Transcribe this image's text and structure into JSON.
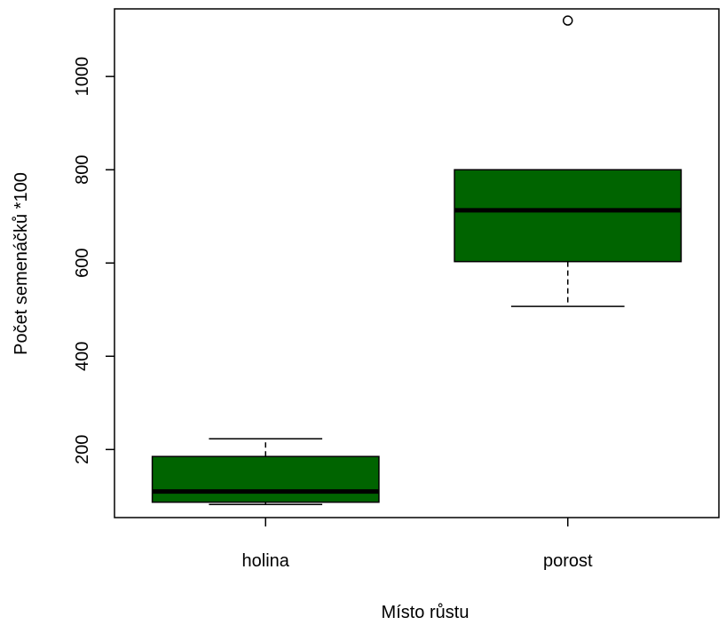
{
  "chart_data": {
    "type": "boxplot",
    "xlabel": "Místo růstu",
    "ylabel": "Počet semenáčků *100",
    "yticks": [
      200,
      400,
      600,
      800,
      1000
    ],
    "ylim": [
      54,
      1145
    ],
    "categories": [
      "holina",
      "porost"
    ],
    "box_color": "#006400",
    "boxes": [
      {
        "name": "holina",
        "whisker_low": 82,
        "q1": 87,
        "median": 110,
        "q3": 185,
        "whisker_high": 223,
        "outliers": []
      },
      {
        "name": "porost",
        "whisker_low": 507,
        "q1": 603,
        "median": 713,
        "q3": 800,
        "whisker_high": 800,
        "outliers": [
          1120
        ]
      }
    ]
  }
}
